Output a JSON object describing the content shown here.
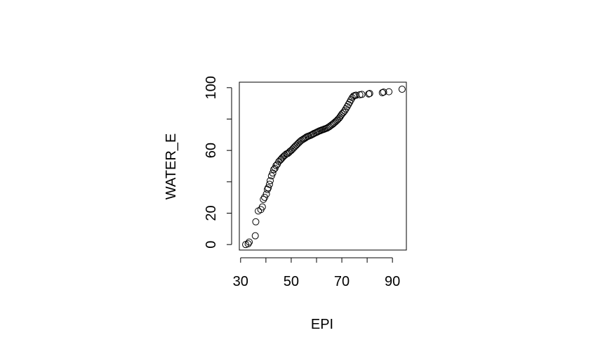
{
  "chart_data": {
    "type": "scatter",
    "title": "",
    "xlabel": "EPI",
    "ylabel": "WATER_E",
    "xlim": [
      29.5,
      95.5
    ],
    "ylim": [
      -3.5,
      103.5
    ],
    "x_ticks": [
      30,
      40,
      50,
      60,
      70,
      80,
      90
    ],
    "x_tick_labels": [
      "30",
      "",
      "50",
      "",
      "70",
      "",
      "90"
    ],
    "y_ticks": [
      0,
      20,
      40,
      60,
      80,
      100
    ],
    "y_tick_labels": [
      "0",
      "20",
      "",
      "60",
      "",
      "100"
    ],
    "grid": false,
    "marker": "open-circle",
    "x": [
      32.0,
      33.0,
      33.4,
      35.8,
      36.0,
      37.0,
      38.0,
      38.6,
      39.0,
      39.5,
      40.2,
      40.6,
      40.9,
      41.4,
      41.7,
      42.2,
      42.7,
      43.1,
      43.6,
      44.0,
      44.5,
      45.1,
      45.7,
      46.1,
      46.5,
      47.0,
      47.5,
      48.1,
      48.6,
      49.1,
      49.5,
      50.0,
      50.5,
      51.0,
      51.5,
      52.0,
      52.5,
      53.0,
      53.5,
      54.0,
      54.6,
      55.1,
      55.6,
      56.0,
      56.5,
      57.0,
      57.6,
      58.1,
      58.6,
      59.0,
      59.6,
      60.1,
      60.6,
      61.1,
      61.6,
      62.1,
      62.6,
      63.1,
      63.6,
      64.1,
      64.6,
      65.1,
      65.6,
      66.1,
      66.6,
      67.0,
      67.5,
      68.0,
      68.4,
      68.9,
      69.3,
      69.7,
      70.1,
      70.6,
      71.1,
      71.6,
      72.1,
      72.6,
      73.1,
      73.6,
      74.1,
      74.6,
      75.1,
      75.6,
      77.1,
      77.9,
      80.6,
      81.0,
      86.0,
      86.5,
      88.6,
      93.8
    ],
    "y": [
      0.0,
      0.5,
      1.6,
      5.6,
      14.5,
      21.4,
      22.3,
      24.0,
      28.8,
      30.1,
      32.2,
      35.1,
      36.2,
      38.4,
      40.7,
      43.8,
      45.6,
      47.8,
      48.6,
      50.3,
      51.2,
      52.9,
      53.9,
      54.6,
      55.4,
      56.2,
      56.9,
      57.8,
      58.0,
      58.7,
      59.4,
      60.0,
      60.8,
      61.7,
      62.5,
      63.3,
      64.1,
      64.9,
      65.7,
      66.4,
      67.0,
      67.5,
      68.0,
      68.5,
      68.9,
      69.2,
      69.6,
      70.0,
      70.4,
      70.8,
      71.2,
      71.6,
      72.0,
      72.4,
      72.7,
      73.0,
      73.3,
      73.6,
      73.9,
      74.2,
      74.7,
      75.2,
      75.8,
      76.4,
      77.0,
      77.6,
      78.3,
      79.0,
      79.7,
      80.5,
      81.4,
      82.4,
      83.3,
      84.2,
      85.2,
      86.5,
      87.9,
      89.3,
      90.7,
      92.2,
      93.6,
      94.6,
      95.0,
      95.2,
      95.5,
      95.7,
      96.0,
      96.3,
      96.8,
      97.2,
      97.4,
      99.0
    ]
  }
}
